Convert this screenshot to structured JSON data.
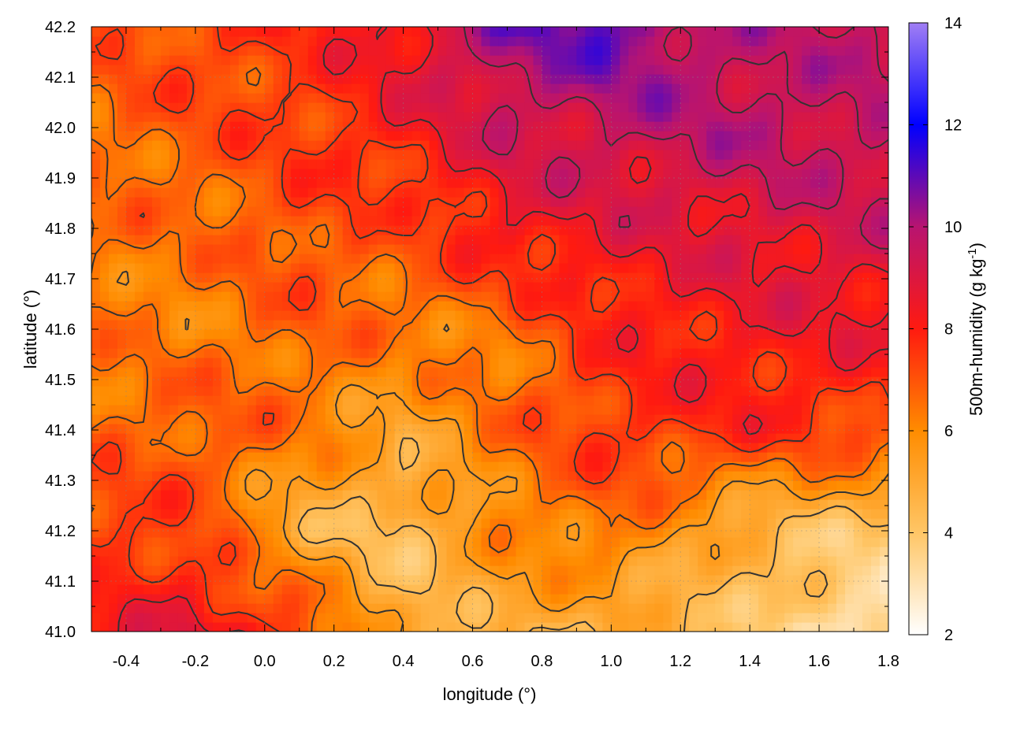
{
  "chart_data": {
    "type": "heatmap",
    "title": "",
    "xlabel": "longitude (°)",
    "ylabel": "latitude (°)",
    "colorbar_label_main": "500m-humidity (g kg",
    "colorbar_label_exp": "-1",
    "colorbar_label_close": ")",
    "xlim": [
      -0.5,
      1.8
    ],
    "ylim": [
      41.0,
      42.2
    ],
    "clim": [
      2,
      14
    ],
    "xticks": [
      -0.4,
      -0.2,
      0.0,
      0.2,
      0.4,
      0.6,
      0.8,
      1.0,
      1.2,
      1.4,
      1.6,
      1.8
    ],
    "xtick_labels": [
      "-0.4",
      "-0.2",
      "0.0",
      "0.2",
      "0.4",
      "0.6",
      "0.8",
      "1.0",
      "1.2",
      "1.4",
      "1.6",
      "1.8"
    ],
    "yticks": [
      41.0,
      41.1,
      41.2,
      41.3,
      41.4,
      41.5,
      41.6,
      41.7,
      41.8,
      41.9,
      42.0,
      42.1,
      42.2
    ],
    "ytick_labels": [
      "41.0",
      "41.1",
      "41.2",
      "41.3",
      "41.4",
      "41.5",
      "41.6",
      "41.7",
      "41.8",
      "41.9",
      "42.0",
      "42.1",
      "42.2"
    ],
    "cticks": [
      2,
      4,
      6,
      8,
      10,
      12,
      14
    ],
    "ctick_labels": [
      "2",
      "4",
      "6",
      "8",
      "10",
      "12",
      "14"
    ],
    "colormap": [
      {
        "v": 2,
        "c": "#ffffff"
      },
      {
        "v": 4,
        "c": "#ffc666"
      },
      {
        "v": 6,
        "c": "#ff8c00"
      },
      {
        "v": 8,
        "c": "#ff1a10"
      },
      {
        "v": 10,
        "c": "#b81470"
      },
      {
        "v": 12,
        "c": "#0000ff"
      },
      {
        "v": 14,
        "c": "#a07ef4"
      }
    ],
    "grid": true,
    "contour_color": "#333333",
    "field_grid": {
      "lons": [
        -0.5,
        -0.2,
        0.1,
        0.4,
        0.7,
        1.0,
        1.3,
        1.55,
        1.8
      ],
      "lats": [
        41.0,
        41.2,
        41.4,
        41.6,
        41.8,
        42.0,
        42.2
      ],
      "values": [
        [
          8.0,
          8.8,
          7.6,
          4.6,
          5.0,
          4.6,
          4.6,
          3.5,
          2.6
        ],
        [
          7.6,
          7.2,
          4.8,
          4.2,
          6.0,
          6.6,
          4.9,
          4.3,
          4.0
        ],
        [
          6.6,
          7.0,
          6.4,
          5.2,
          6.6,
          7.6,
          7.8,
          7.6,
          7.3
        ],
        [
          6.3,
          6.2,
          6.8,
          6.4,
          6.4,
          7.8,
          8.2,
          8.4,
          8.3
        ],
        [
          6.5,
          6.5,
          7.2,
          7.0,
          8.4,
          8.6,
          8.8,
          9.0,
          9.2
        ],
        [
          6.6,
          7.0,
          7.4,
          8.2,
          9.2,
          9.6,
          9.8,
          9.7,
          9.6
        ],
        [
          7.0,
          7.4,
          7.6,
          8.6,
          10.6,
          11.0,
          9.8,
          9.6,
          9.6
        ]
      ]
    },
    "contour_levels": [
      4.5,
      5.5,
      6.5,
      7.5,
      8.5,
      9.5
    ]
  }
}
